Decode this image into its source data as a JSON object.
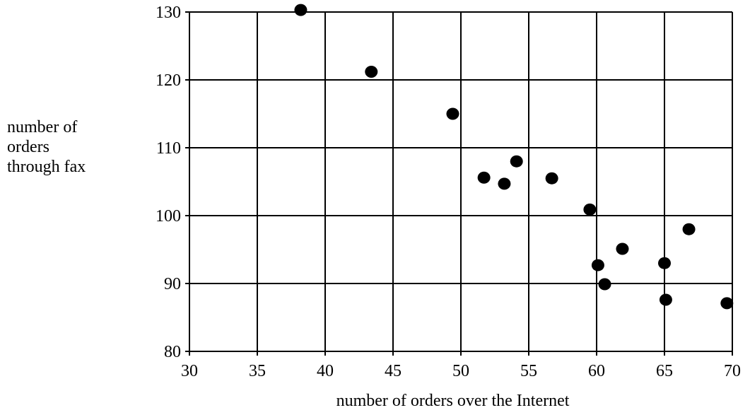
{
  "chart_data": {
    "type": "scatter",
    "xlabel": "number of orders over the Internet",
    "ylabel_lines": [
      "number of",
      "orders",
      "through fax"
    ],
    "xlim": [
      30,
      70
    ],
    "ylim": [
      80,
      130
    ],
    "xticks": [
      30,
      35,
      40,
      45,
      50,
      55,
      60,
      65,
      70
    ],
    "yticks": [
      80,
      90,
      100,
      110,
      120,
      130
    ],
    "grid": true,
    "points": [
      {
        "x": 38.2,
        "y": 130.3
      },
      {
        "x": 43.4,
        "y": 121.2
      },
      {
        "x": 49.4,
        "y": 115.0
      },
      {
        "x": 51.7,
        "y": 105.6
      },
      {
        "x": 53.2,
        "y": 104.7
      },
      {
        "x": 54.1,
        "y": 108.0
      },
      {
        "x": 56.7,
        "y": 105.5
      },
      {
        "x": 59.5,
        "y": 100.9
      },
      {
        "x": 60.1,
        "y": 92.7
      },
      {
        "x": 60.6,
        "y": 89.9
      },
      {
        "x": 61.9,
        "y": 95.1
      },
      {
        "x": 65.0,
        "y": 93.0
      },
      {
        "x": 65.1,
        "y": 87.6
      },
      {
        "x": 66.8,
        "y": 98.0
      },
      {
        "x": 69.6,
        "y": 87.1
      }
    ],
    "marker_color": "#000000"
  }
}
